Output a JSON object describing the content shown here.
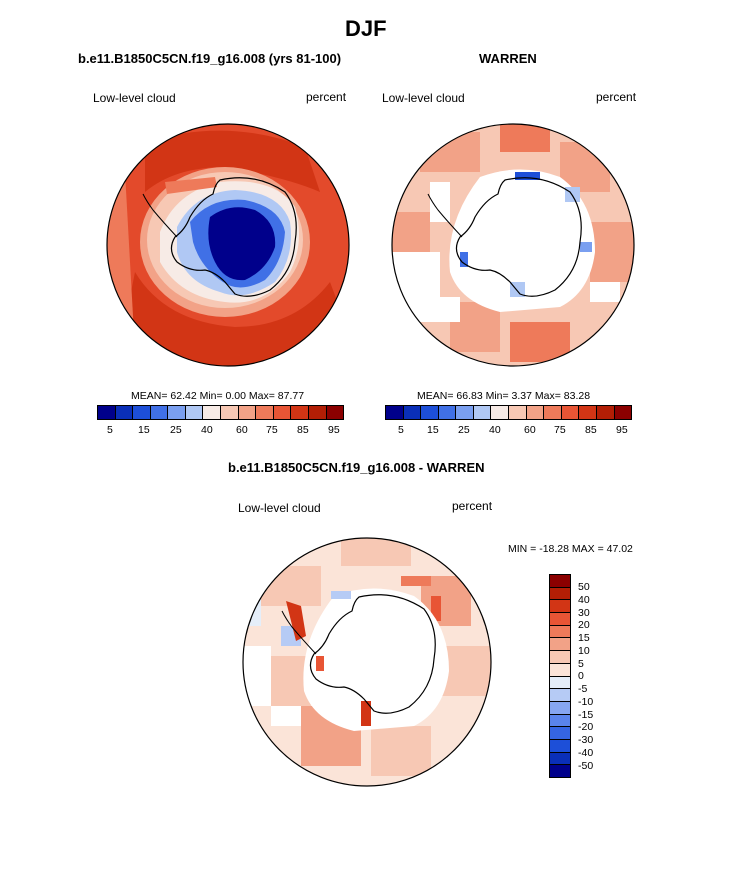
{
  "page_title": "DJF",
  "colors": {
    "palette": [
      "#00008b",
      "#0a2fb8",
      "#1d4fd8",
      "#4070e6",
      "#7a9ff0",
      "#b0c8f4",
      "#f7ebe6",
      "#f7c8b4",
      "#f2a287",
      "#ee7a5a",
      "#e85535",
      "#d23515",
      "#b21e05",
      "#8b0000"
    ],
    "diff_palette": [
      "#00008b",
      "#0a2fb8",
      "#1d4fd8",
      "#3565e3",
      "#5a84ec",
      "#86a6f1",
      "#b6cbf5",
      "#e5eef9",
      "#fbe4d8",
      "#f7c8b4",
      "#f2a287",
      "#ee7a5a",
      "#e85535",
      "#d23515",
      "#b21e05",
      "#8b0000"
    ]
  },
  "panels": {
    "left": {
      "heading": "b.e11.B1850C5CN.f19_g16.008 (yrs 81-100)",
      "variable": "Low-level cloud",
      "units": "percent",
      "stats": "MEAN=  62.42  Min=   0.00  Max=  87.77"
    },
    "right": {
      "heading": "WARREN",
      "variable": "Low-level cloud",
      "units": "percent",
      "stats": "MEAN=  66.83  Min=   3.37  Max=  83.28"
    },
    "bottom": {
      "heading": "b.e11.B1850C5CN.f19_g16.008 - WARREN",
      "variable": "Low-level cloud",
      "units": "percent",
      "stats": "MIN = -18.28 MAX =  47.02"
    }
  },
  "chart_data": [
    {
      "type": "heatmap",
      "title": "b.e11.B1850C5CN.f19_g16.008 (yrs 81-100)",
      "projection": "south-polar stereographic",
      "variable": "Low-level cloud",
      "units": "percent",
      "mean": 62.42,
      "min": 0.0,
      "max": 87.77,
      "colorbar_levels": [
        5,
        10,
        15,
        20,
        25,
        30,
        40,
        50,
        60,
        70,
        75,
        80,
        85,
        90,
        95
      ],
      "colorbar_tick_labels": [
        "5",
        "15",
        "25",
        "40",
        "60",
        "75",
        "85",
        "95"
      ]
    },
    {
      "type": "heatmap",
      "title": "WARREN",
      "projection": "south-polar stereographic",
      "variable": "Low-level cloud",
      "units": "percent",
      "mean": 66.83,
      "min": 3.37,
      "max": 83.28,
      "colorbar_levels": [
        5,
        10,
        15,
        20,
        25,
        30,
        40,
        50,
        60,
        70,
        75,
        80,
        85,
        90,
        95
      ],
      "colorbar_tick_labels": [
        "5",
        "15",
        "25",
        "40",
        "60",
        "75",
        "85",
        "95"
      ]
    },
    {
      "type": "heatmap",
      "title": "b.e11.B1850C5CN.f19_g16.008 - WARREN",
      "projection": "south-polar stereographic",
      "variable": "Low-level cloud",
      "units": "percent",
      "min": -18.28,
      "max": 47.02,
      "colorbar_levels": [
        50,
        40,
        30,
        20,
        15,
        10,
        5,
        0,
        -5,
        -10,
        -15,
        -20,
        -30,
        -40,
        -50
      ],
      "colorbar_tick_labels": [
        "50",
        "40",
        "30",
        "20",
        "15",
        "10",
        "5",
        "0",
        "-5",
        "-10",
        "-15",
        "-20",
        "-30",
        "-40",
        "-50"
      ]
    }
  ]
}
